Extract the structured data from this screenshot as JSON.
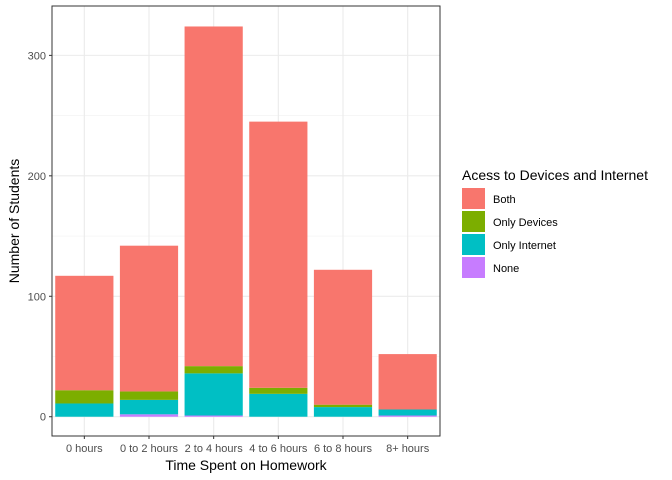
{
  "chart_data": {
    "type": "bar",
    "stacked": true,
    "categories": [
      "0 hours",
      "0 to 2 hours",
      "2 to 4 hours",
      "4 to 6 hours",
      "6 to 8 hours",
      "8+ hours"
    ],
    "series": [
      {
        "name": "Both",
        "color": "#F8766D",
        "values": [
          95,
          121,
          282,
          221,
          112,
          46
        ]
      },
      {
        "name": "Only Devices",
        "color": "#7CAE00",
        "values": [
          11,
          7,
          6,
          5,
          2,
          0
        ]
      },
      {
        "name": "Only Internet",
        "color": "#00BFC4",
        "values": [
          11,
          12,
          35,
          19,
          8,
          5
        ]
      },
      {
        "name": "None",
        "color": "#C77CFF",
        "values": [
          0,
          2,
          1,
          0,
          0,
          1
        ]
      }
    ],
    "stack_order_bottom_to_top": [
      "None",
      "Only Internet",
      "Only Devices",
      "Both"
    ],
    "xlabel": "Time Spent on Homework",
    "ylabel": "Number of Students",
    "ylim": [
      -16,
      341
    ],
    "yticks": [
      0,
      100,
      200,
      300
    ],
    "grid": true,
    "legend": {
      "title": "Acess to Devices and Internet",
      "position": "right"
    }
  }
}
